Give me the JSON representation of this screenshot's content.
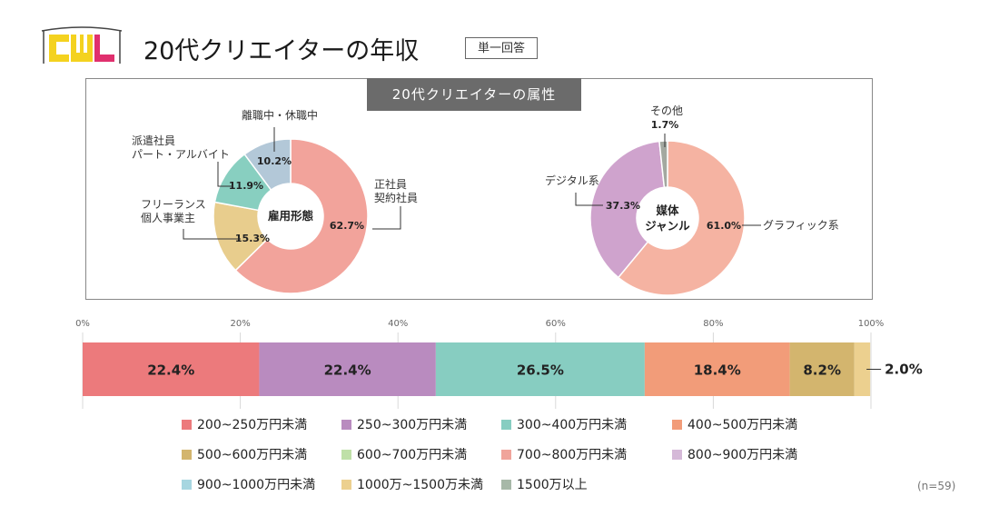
{
  "header": {
    "logo_text": "CWL",
    "title": "20代クリエイターの年収",
    "tag": "単一回答",
    "panel_title": "20代クリエイターの属性"
  },
  "colors": {
    "income": [
      "#ec7a7c",
      "#b98bbf",
      "#87cdc1",
      "#f29c79",
      "#d3b56e",
      "#bfe0a8",
      "#f0a49b",
      "#d5b9d8",
      "#a7d6e0",
      "#ecd08f",
      "#a7b8a8"
    ],
    "employment": [
      "#f2a39b",
      "#e8cd8d",
      "#88cfc0",
      "#b3c8d8"
    ],
    "media": [
      "#f5b3a2",
      "#cfa3cd",
      "#a3a8a0"
    ]
  },
  "chart_data": [
    {
      "type": "pie",
      "center_label": "雇用形態",
      "slices": [
        {
          "label": "正社員\n契約社員",
          "value": 62.7,
          "value_label": "62.7%"
        },
        {
          "label": "フリーランス\n個人事業主",
          "value": 15.3,
          "value_label": "15.3%"
        },
        {
          "label": "派遣社員\nパート・アルバイト",
          "value": 11.9,
          "value_label": "11.9%"
        },
        {
          "label": "離職中・休職中",
          "value": 10.2,
          "value_label": "10.2%"
        }
      ]
    },
    {
      "type": "pie",
      "center_label": "媒体\nジャンル",
      "slices": [
        {
          "label": "グラフィック系",
          "value": 61.0,
          "value_label": "61.0%"
        },
        {
          "label": "デジタル系",
          "value": 37.3,
          "value_label": "37.3%"
        },
        {
          "label": "その他",
          "value": 1.7,
          "value_label": "1.7%"
        }
      ]
    },
    {
      "type": "bar",
      "orientation": "horizontal-stacked",
      "x_ticks": [
        "0%",
        "20%",
        "40%",
        "60%",
        "80%",
        "100%"
      ],
      "xlim": [
        0,
        100
      ],
      "segments": [
        {
          "name": "200~250万円未満",
          "value": 22.4,
          "value_label": "22.4%"
        },
        {
          "name": "250~300万円未満",
          "value": 22.4,
          "value_label": "22.4%"
        },
        {
          "name": "300~400万円未満",
          "value": 26.5,
          "value_label": "26.5%"
        },
        {
          "name": "400~500万円未満",
          "value": 18.4,
          "value_label": "18.4%"
        },
        {
          "name": "500~600万円未満",
          "value": 8.2,
          "value_label": "8.2%"
        },
        {
          "name": "600~700万円未満",
          "value": 0,
          "value_label": ""
        },
        {
          "name": "700~800万円未満",
          "value": 0,
          "value_label": ""
        },
        {
          "name": "800~900万円未満",
          "value": 0,
          "value_label": ""
        },
        {
          "name": "900~1000万円未満",
          "value": 0,
          "value_label": ""
        },
        {
          "name": "1000万~1500万未満",
          "value": 2.0,
          "value_label": "2.0%"
        },
        {
          "name": "1500万以上",
          "value": 0,
          "value_label": ""
        }
      ],
      "legend_position": "bottom"
    }
  ],
  "footer": {
    "n_label": "(n=59)"
  }
}
